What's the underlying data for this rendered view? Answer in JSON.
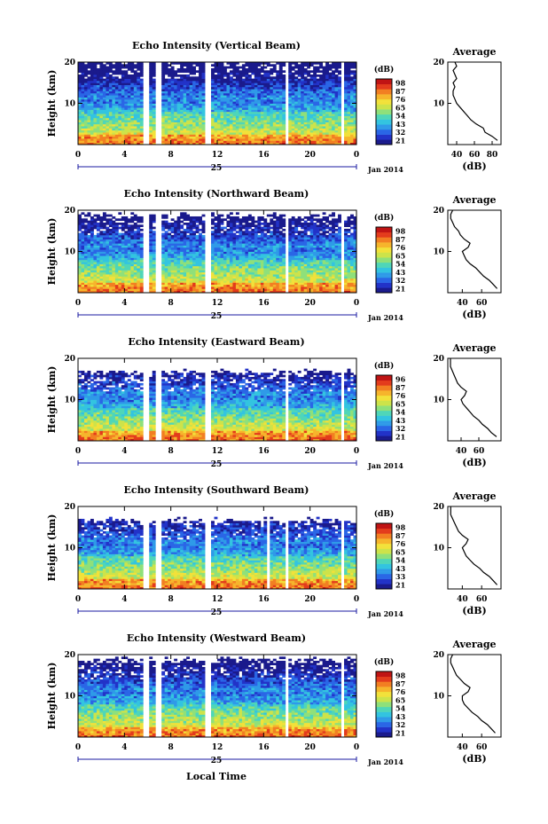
{
  "figure": {
    "xaxis_label": "Local Time",
    "y_label": "Height (km)",
    "avg_xlabel": "(dB)",
    "avg_title": "Average",
    "date_day": "25",
    "date_month_year": "Jan 2014",
    "cbar_unit": "(dB)"
  },
  "chart_data": [
    {
      "type": "heatmap",
      "title": "Echo Intensity (Vertical Beam)",
      "xlabel": "",
      "ylabel": "Height (km)",
      "xlim": [
        0,
        24
      ],
      "ylim": [
        0,
        20
      ],
      "xticks": [
        "0",
        "4",
        "8",
        "12",
        "16",
        "20",
        "0"
      ],
      "yticks": [
        "10",
        "20"
      ],
      "colorbar_ticks": [
        "21",
        "32",
        "43",
        "54",
        "65",
        "76",
        "87",
        "98"
      ],
      "gaps": [
        [
          5.6,
          6.0
        ],
        [
          6.6,
          7.1
        ],
        [
          11.0,
          11.4
        ],
        [
          17.8,
          18.1
        ],
        [
          22.6,
          22.9
        ]
      ],
      "top_km": 20,
      "average": {
        "xticks": [
          "40",
          "60",
          "80"
        ],
        "xlim": [
          30,
          90
        ],
        "ylim": [
          0,
          20
        ],
        "yticks": [
          "10",
          "20"
        ],
        "profile": [
          [
            1,
            86
          ],
          [
            2,
            80
          ],
          [
            3,
            72
          ],
          [
            4,
            70
          ],
          [
            5,
            62
          ],
          [
            6,
            56
          ],
          [
            7,
            52
          ],
          [
            8,
            48
          ],
          [
            9,
            44
          ],
          [
            10,
            40
          ],
          [
            11,
            38
          ],
          [
            12,
            36
          ],
          [
            13,
            36
          ],
          [
            14,
            38
          ],
          [
            15,
            36
          ],
          [
            16,
            40
          ],
          [
            17,
            38
          ],
          [
            18,
            36
          ],
          [
            19,
            40
          ],
          [
            20,
            38
          ]
        ]
      }
    },
    {
      "type": "heatmap",
      "title": "Echo Intensity (Northward Beam)",
      "xlabel": "",
      "ylabel": "Height (km)",
      "xlim": [
        0,
        24
      ],
      "ylim": [
        0,
        20
      ],
      "xticks": [
        "0",
        "4",
        "8",
        "12",
        "16",
        "20",
        "0"
      ],
      "yticks": [
        "10",
        "20"
      ],
      "colorbar_ticks": [
        "21",
        "32",
        "43",
        "54",
        "65",
        "76",
        "87",
        "98"
      ],
      "gaps": [
        [
          5.6,
          6.0
        ],
        [
          6.6,
          7.1
        ],
        [
          11.0,
          11.4
        ],
        [
          17.8,
          18.1
        ],
        [
          22.6,
          22.9
        ]
      ],
      "top_km": 18,
      "average": {
        "xticks": [
          "40",
          "60"
        ],
        "xlim": [
          25,
          80
        ],
        "ylim": [
          0,
          20
        ],
        "yticks": [
          "10",
          "20"
        ],
        "profile": [
          [
            1,
            76
          ],
          [
            2,
            72
          ],
          [
            3,
            68
          ],
          [
            4,
            62
          ],
          [
            5,
            58
          ],
          [
            6,
            54
          ],
          [
            7,
            48
          ],
          [
            8,
            44
          ],
          [
            9,
            42
          ],
          [
            10,
            40
          ],
          [
            11,
            46
          ],
          [
            12,
            48
          ],
          [
            13,
            42
          ],
          [
            14,
            38
          ],
          [
            15,
            36
          ],
          [
            16,
            32
          ],
          [
            17,
            30
          ],
          [
            18,
            28
          ],
          [
            19,
            28
          ],
          [
            20,
            30
          ]
        ]
      }
    },
    {
      "type": "heatmap",
      "title": "Echo Intensity (Eastward Beam)",
      "xlabel": "",
      "ylabel": "Height (km)",
      "xlim": [
        0,
        24
      ],
      "ylim": [
        0,
        20
      ],
      "xticks": [
        "0",
        "4",
        "8",
        "12",
        "16",
        "20",
        "0"
      ],
      "yticks": [
        "10",
        "20"
      ],
      "colorbar_ticks": [
        "21",
        "32",
        "43",
        "54",
        "65",
        "76",
        "87",
        "96"
      ],
      "gaps": [
        [
          5.6,
          6.0
        ],
        [
          6.6,
          7.1
        ],
        [
          11.0,
          11.4
        ],
        [
          17.8,
          18.1
        ],
        [
          22.6,
          22.9
        ]
      ],
      "top_km": 16,
      "average": {
        "xticks": [
          "40",
          "60"
        ],
        "xlim": [
          25,
          85
        ],
        "ylim": [
          0,
          20
        ],
        "yticks": [
          "10",
          "20"
        ],
        "profile": [
          [
            1,
            80
          ],
          [
            2,
            74
          ],
          [
            3,
            70
          ],
          [
            4,
            64
          ],
          [
            5,
            60
          ],
          [
            6,
            54
          ],
          [
            7,
            50
          ],
          [
            8,
            46
          ],
          [
            9,
            42
          ],
          [
            10,
            40
          ],
          [
            11,
            44
          ],
          [
            12,
            46
          ],
          [
            13,
            40
          ],
          [
            14,
            36
          ],
          [
            15,
            34
          ],
          [
            16,
            32
          ],
          [
            17,
            30
          ],
          [
            18,
            28
          ],
          [
            19,
            28
          ],
          [
            20,
            28
          ]
        ]
      }
    },
    {
      "type": "heatmap",
      "title": "Echo Intensity (Southward Beam)",
      "xlabel": "",
      "ylabel": "Height (km)",
      "xlim": [
        0,
        24
      ],
      "ylim": [
        0,
        20
      ],
      "xticks": [
        "0",
        "4",
        "8",
        "12",
        "16",
        "20",
        "0"
      ],
      "yticks": [
        "10",
        "20"
      ],
      "colorbar_ticks": [
        "21",
        "33",
        "43",
        "54",
        "65",
        "76",
        "87",
        "98"
      ],
      "gaps": [
        [
          5.6,
          6.0
        ],
        [
          6.6,
          7.1
        ],
        [
          11.0,
          11.4
        ],
        [
          16.2,
          16.6
        ],
        [
          17.8,
          18.1
        ],
        [
          22.6,
          22.9
        ]
      ],
      "top_km": 16,
      "average": {
        "xticks": [
          "40",
          "60"
        ],
        "xlim": [
          25,
          80
        ],
        "ylim": [
          0,
          20
        ],
        "yticks": [
          "10",
          "20"
        ],
        "profile": [
          [
            1,
            76
          ],
          [
            2,
            72
          ],
          [
            3,
            68
          ],
          [
            4,
            62
          ],
          [
            5,
            58
          ],
          [
            6,
            52
          ],
          [
            7,
            48
          ],
          [
            8,
            44
          ],
          [
            9,
            42
          ],
          [
            10,
            40
          ],
          [
            11,
            44
          ],
          [
            12,
            46
          ],
          [
            13,
            40
          ],
          [
            14,
            36
          ],
          [
            15,
            34
          ],
          [
            16,
            32
          ],
          [
            17,
            30
          ],
          [
            18,
            28
          ],
          [
            19,
            28
          ],
          [
            20,
            28
          ]
        ]
      }
    },
    {
      "type": "heatmap",
      "title": "Echo Intensity (Westward Beam)",
      "xlabel": "",
      "ylabel": "Height (km)",
      "xlim": [
        0,
        24
      ],
      "ylim": [
        0,
        20
      ],
      "xticks": [
        "0",
        "4",
        "8",
        "12",
        "16",
        "20",
        "0"
      ],
      "yticks": [
        "10",
        "20"
      ],
      "colorbar_ticks": [
        "21",
        "32",
        "43",
        "54",
        "65",
        "76",
        "87",
        "98"
      ],
      "gaps": [
        [
          5.6,
          6.0
        ],
        [
          6.6,
          7.1
        ],
        [
          11.0,
          11.4
        ],
        [
          17.8,
          18.1
        ],
        [
          22.6,
          22.9
        ]
      ],
      "top_km": 18,
      "average": {
        "xticks": [
          "40",
          "60"
        ],
        "xlim": [
          25,
          80
        ],
        "ylim": [
          0,
          20
        ],
        "yticks": [
          "10",
          "20"
        ],
        "profile": [
          [
            1,
            74
          ],
          [
            2,
            70
          ],
          [
            3,
            66
          ],
          [
            4,
            60
          ],
          [
            5,
            56
          ],
          [
            6,
            50
          ],
          [
            7,
            46
          ],
          [
            8,
            42
          ],
          [
            9,
            40
          ],
          [
            10,
            40
          ],
          [
            11,
            46
          ],
          [
            12,
            48
          ],
          [
            13,
            42
          ],
          [
            14,
            38
          ],
          [
            15,
            34
          ],
          [
            16,
            32
          ],
          [
            17,
            30
          ],
          [
            18,
            28
          ],
          [
            19,
            28
          ],
          [
            20,
            30
          ]
        ]
      }
    }
  ]
}
